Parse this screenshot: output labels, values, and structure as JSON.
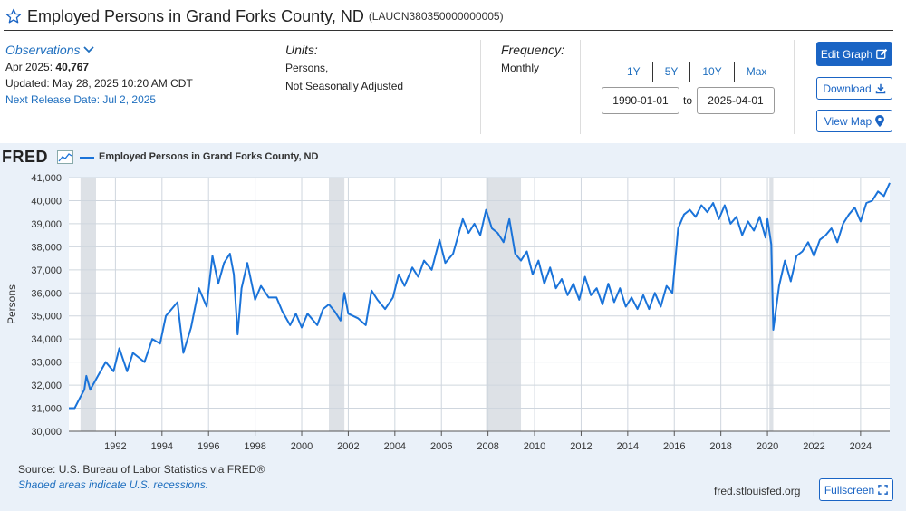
{
  "header": {
    "title": "Employed Persons in Grand Forks County, ND",
    "series_code": "(LAUCN380350000000005)"
  },
  "observations": {
    "toggle_label": "Observations",
    "latest_label": "Apr 2025:",
    "latest_value": "40,767",
    "updated": "Updated: May 28, 2025 10:20 AM CDT",
    "next_release": "Next Release Date: Jul 2, 2025"
  },
  "units": {
    "heading": "Units:",
    "line1": "Persons,",
    "line2": "Not Seasonally Adjusted"
  },
  "frequency": {
    "heading": "Frequency:",
    "value": "Monthly"
  },
  "range_buttons": [
    "1Y",
    "5Y",
    "10Y",
    "Max"
  ],
  "date_range": {
    "start": "1990-01-01",
    "to_label": "to",
    "end": "2025-04-01"
  },
  "buttons": {
    "edit_graph": "Edit Graph",
    "download": "Download",
    "view_map": "View Map",
    "fullscreen": "Fullscreen"
  },
  "footer": {
    "source": "Source: U.S. Bureau of Labor Statistics via FRED®",
    "shaded_note": "Shaded areas indicate U.S. recessions.",
    "url": "fred.stlouisfed.org"
  },
  "colors": {
    "series": "#1a73d9",
    "accent": "#1a64c4",
    "link": "#1f6fbf",
    "panel": "#eaf1f9",
    "recession": "#dde1e6"
  },
  "icons": {
    "title": "star-icon",
    "observations": "chevron-down-icon",
    "edit_graph": "pencil-icon",
    "download": "download-icon",
    "view_map": "map-marker-icon",
    "fullscreen": "fullscreen-icon",
    "logo": "fred-chart-icon"
  },
  "chart_data": {
    "type": "line",
    "logo_text": "FRED",
    "legend": [
      "Employed Persons in Grand Forks County, ND"
    ],
    "ylabel": "Persons",
    "xlabel": "",
    "ylim": [
      30000,
      41000
    ],
    "xlim": [
      "1990-01",
      "2025-04"
    ],
    "y_ticks": [
      "30,000",
      "31,000",
      "32,000",
      "33,000",
      "34,000",
      "35,000",
      "36,000",
      "37,000",
      "38,000",
      "39,000",
      "40,000",
      "41,000"
    ],
    "x_ticks": [
      "1992",
      "1994",
      "1996",
      "1998",
      "2000",
      "2002",
      "2004",
      "2006",
      "2008",
      "2010",
      "2012",
      "2014",
      "2016",
      "2018",
      "2020",
      "2022",
      "2024"
    ],
    "grid": true,
    "recessions": [
      [
        "1990-07",
        "1991-03"
      ],
      [
        "2001-03",
        "2001-11"
      ],
      [
        "2007-12",
        "2009-06"
      ],
      [
        "2020-02",
        "2020-04"
      ]
    ],
    "series": [
      {
        "name": "Employed Persons in Grand Forks County, ND",
        "points": [
          [
            "1990-01",
            31000
          ],
          [
            "1990-04",
            31000
          ],
          [
            "1990-07",
            31500
          ],
          [
            "1990-09",
            31800
          ],
          [
            "1990-10",
            32400
          ],
          [
            "1990-12",
            31800
          ],
          [
            "1991-04",
            32400
          ],
          [
            "1991-08",
            33000
          ],
          [
            "1991-12",
            32600
          ],
          [
            "1992-03",
            33600
          ],
          [
            "1992-07",
            32600
          ],
          [
            "1992-10",
            33400
          ],
          [
            "1993-04",
            33000
          ],
          [
            "1993-08",
            34000
          ],
          [
            "1993-12",
            33800
          ],
          [
            "1994-03",
            35000
          ],
          [
            "1994-07",
            35400
          ],
          [
            "1994-09",
            35600
          ],
          [
            "1994-12",
            33400
          ],
          [
            "1995-04",
            34500
          ],
          [
            "1995-08",
            36200
          ],
          [
            "1995-12",
            35400
          ],
          [
            "1996-03",
            37600
          ],
          [
            "1996-06",
            36400
          ],
          [
            "1996-09",
            37300
          ],
          [
            "1996-12",
            37700
          ],
          [
            "1997-02",
            36800
          ],
          [
            "1997-04",
            34200
          ],
          [
            "1997-06",
            36200
          ],
          [
            "1997-09",
            37300
          ],
          [
            "1998-01",
            35700
          ],
          [
            "1998-04",
            36300
          ],
          [
            "1998-08",
            35800
          ],
          [
            "1998-12",
            35800
          ],
          [
            "1999-03",
            35200
          ],
          [
            "1999-07",
            34600
          ],
          [
            "1999-10",
            35100
          ],
          [
            "2000-01",
            34500
          ],
          [
            "2000-04",
            35100
          ],
          [
            "2000-09",
            34600
          ],
          [
            "2000-12",
            35300
          ],
          [
            "2001-03",
            35500
          ],
          [
            "2001-06",
            35200
          ],
          [
            "2001-09",
            34800
          ],
          [
            "2001-11",
            36000
          ],
          [
            "2002-01",
            35100
          ],
          [
            "2002-06",
            34900
          ],
          [
            "2002-10",
            34600
          ],
          [
            "2003-01",
            36100
          ],
          [
            "2003-04",
            35700
          ],
          [
            "2003-08",
            35300
          ],
          [
            "2003-12",
            35800
          ],
          [
            "2004-03",
            36800
          ],
          [
            "2004-06",
            36300
          ],
          [
            "2004-10",
            37100
          ],
          [
            "2005-01",
            36700
          ],
          [
            "2005-04",
            37400
          ],
          [
            "2005-08",
            37000
          ],
          [
            "2005-12",
            38300
          ],
          [
            "2006-03",
            37300
          ],
          [
            "2006-07",
            37700
          ],
          [
            "2006-12",
            39200
          ],
          [
            "2007-03",
            38600
          ],
          [
            "2007-06",
            39000
          ],
          [
            "2007-09",
            38500
          ],
          [
            "2007-12",
            39600
          ],
          [
            "2008-03",
            38800
          ],
          [
            "2008-06",
            38600
          ],
          [
            "2008-09",
            38200
          ],
          [
            "2008-12",
            39200
          ],
          [
            "2009-03",
            37700
          ],
          [
            "2009-06",
            37400
          ],
          [
            "2009-09",
            37800
          ],
          [
            "2009-12",
            36800
          ],
          [
            "2010-03",
            37400
          ],
          [
            "2010-06",
            36400
          ],
          [
            "2010-09",
            37100
          ],
          [
            "2010-12",
            36200
          ],
          [
            "2011-03",
            36600
          ],
          [
            "2011-06",
            35900
          ],
          [
            "2011-09",
            36400
          ],
          [
            "2011-12",
            35700
          ],
          [
            "2012-03",
            36700
          ],
          [
            "2012-06",
            35900
          ],
          [
            "2012-09",
            36200
          ],
          [
            "2012-12",
            35500
          ],
          [
            "2013-03",
            36400
          ],
          [
            "2013-06",
            35600
          ],
          [
            "2013-09",
            36200
          ],
          [
            "2013-12",
            35400
          ],
          [
            "2014-03",
            35800
          ],
          [
            "2014-06",
            35300
          ],
          [
            "2014-09",
            35900
          ],
          [
            "2014-12",
            35300
          ],
          [
            "2015-03",
            36000
          ],
          [
            "2015-06",
            35400
          ],
          [
            "2015-09",
            36300
          ],
          [
            "2015-12",
            36000
          ],
          [
            "2016-03",
            38800
          ],
          [
            "2016-06",
            39400
          ],
          [
            "2016-09",
            39600
          ],
          [
            "2016-12",
            39300
          ],
          [
            "2017-03",
            39800
          ],
          [
            "2017-06",
            39500
          ],
          [
            "2017-09",
            39900
          ],
          [
            "2017-12",
            39200
          ],
          [
            "2018-03",
            39800
          ],
          [
            "2018-06",
            39000
          ],
          [
            "2018-09",
            39300
          ],
          [
            "2018-12",
            38500
          ],
          [
            "2019-03",
            39100
          ],
          [
            "2019-06",
            38700
          ],
          [
            "2019-09",
            39300
          ],
          [
            "2019-12",
            38400
          ],
          [
            "2020-01",
            39200
          ],
          [
            "2020-03",
            38100
          ],
          [
            "2020-04",
            34400
          ],
          [
            "2020-07",
            36300
          ],
          [
            "2020-10",
            37400
          ],
          [
            "2021-01",
            36500
          ],
          [
            "2021-04",
            37600
          ],
          [
            "2021-07",
            37800
          ],
          [
            "2021-10",
            38200
          ],
          [
            "2022-01",
            37600
          ],
          [
            "2022-04",
            38300
          ],
          [
            "2022-07",
            38500
          ],
          [
            "2022-10",
            38800
          ],
          [
            "2023-01",
            38200
          ],
          [
            "2023-04",
            39000
          ],
          [
            "2023-07",
            39400
          ],
          [
            "2023-10",
            39700
          ],
          [
            "2024-01",
            39100
          ],
          [
            "2024-04",
            39900
          ],
          [
            "2024-07",
            40000
          ],
          [
            "2024-10",
            40400
          ],
          [
            "2025-01",
            40200
          ],
          [
            "2025-04",
            40767
          ]
        ]
      }
    ]
  }
}
